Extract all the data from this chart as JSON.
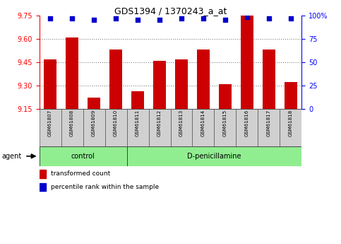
{
  "title": "GDS1394 / 1370243_a_at",
  "samples": [
    "GSM61807",
    "GSM61808",
    "GSM61809",
    "GSM61810",
    "GSM61811",
    "GSM61812",
    "GSM61813",
    "GSM61814",
    "GSM61815",
    "GSM61816",
    "GSM61817",
    "GSM61818"
  ],
  "bar_values": [
    9.47,
    9.61,
    9.22,
    9.53,
    9.26,
    9.46,
    9.47,
    9.53,
    9.31,
    9.75,
    9.53,
    9.32
  ],
  "percentile_values": [
    97,
    97,
    96,
    97,
    96,
    96,
    97,
    97,
    96,
    99,
    97,
    97
  ],
  "bar_color": "#cc0000",
  "dot_color": "#0000cc",
  "ylim_left": [
    9.15,
    9.75
  ],
  "ylim_right": [
    0,
    100
  ],
  "yticks_left": [
    9.15,
    9.3,
    9.45,
    9.6,
    9.75
  ],
  "yticks_right": [
    0,
    25,
    50,
    75,
    100
  ],
  "ytick_labels_right": [
    "0",
    "25",
    "50",
    "75",
    "100%"
  ],
  "grid_values": [
    9.3,
    9.45,
    9.6
  ],
  "n_control": 4,
  "n_treatment": 8,
  "control_label": "control",
  "treatment_label": "D-penicillamine",
  "agent_label": "agent",
  "legend_bar_label": "transformed count",
  "legend_dot_label": "percentile rank within the sample",
  "bar_width": 0.6,
  "fig_w": 4.83,
  "fig_h": 3.45,
  "dpi": 100
}
